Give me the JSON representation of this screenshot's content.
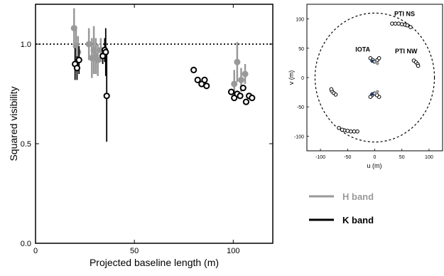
{
  "colors": {
    "h_band": "#999999",
    "k_band": "#000000",
    "accent_point": "#1f3a6e"
  },
  "chart_data": [
    {
      "type": "scatter",
      "xlabel": "Projected baseline length (m)",
      "ylabel": "Squared visibility",
      "xlim": [
        0,
        120
      ],
      "ylim": [
        0.0,
        1.2
      ],
      "x_ticks": [
        "0",
        "50",
        "100"
      ],
      "y_ticks": [
        "0.0",
        "0.5",
        "1.0"
      ],
      "reference_line": 1.0,
      "grid": false,
      "series": [
        {
          "name": "H band",
          "color": "#999999",
          "marker": "filled-circle",
          "points": [
            {
              "x": 19.5,
              "y": 1.08,
              "err": 0.1
            },
            {
              "x": 20.5,
              "y": 0.99,
              "err": 0.1
            },
            {
              "x": 21.5,
              "y": 0.96,
              "err": 0.08
            },
            {
              "x": 27.0,
              "y": 1.0,
              "err": 0.08
            },
            {
              "x": 28.5,
              "y": 0.93,
              "err": 0.1
            },
            {
              "x": 29.5,
              "y": 0.97,
              "err": 0.12
            },
            {
              "x": 30.5,
              "y": 0.94,
              "err": 0.09
            },
            {
              "x": 31.5,
              "y": 0.92,
              "err": 0.08
            },
            {
              "x": 33.0,
              "y": 0.97,
              "err": 0.06
            },
            {
              "x": 100.5,
              "y": 0.8,
              "err": 0.07
            },
            {
              "x": 102.0,
              "y": 0.91,
              "err": 0.1
            },
            {
              "x": 104.0,
              "y": 0.82,
              "err": 0.06
            },
            {
              "x": 106.0,
              "y": 0.85,
              "err": 0.05
            }
          ]
        },
        {
          "name": "K band",
          "color": "#000000",
          "marker": "open-circle",
          "points": [
            {
              "x": 20.0,
              "y": 0.9,
              "err": 0.08
            },
            {
              "x": 21.0,
              "y": 0.88,
              "err": 0.06
            },
            {
              "x": 22.0,
              "y": 0.92,
              "err": 0.07
            },
            {
              "x": 34.0,
              "y": 0.94,
              "err": 0.04
            },
            {
              "x": 35.0,
              "y": 0.97,
              "err": 0.06
            },
            {
              "x": 35.5,
              "y": 0.96,
              "err": 0.12
            },
            {
              "x": 36.0,
              "y": 0.74,
              "err": 0.23
            },
            {
              "x": 80.0,
              "y": 0.87,
              "err": 0.0
            },
            {
              "x": 82.0,
              "y": 0.82,
              "err": 0.0
            },
            {
              "x": 84.0,
              "y": 0.8,
              "err": 0.0
            },
            {
              "x": 85.5,
              "y": 0.82,
              "err": 0.0
            },
            {
              "x": 86.5,
              "y": 0.79,
              "err": 0.0
            },
            {
              "x": 99.0,
              "y": 0.76,
              "err": 0.0
            },
            {
              "x": 100.5,
              "y": 0.73,
              "err": 0.0
            },
            {
              "x": 102.0,
              "y": 0.75,
              "err": 0.0
            },
            {
              "x": 103.5,
              "y": 0.74,
              "err": 0.0
            },
            {
              "x": 105.0,
              "y": 0.78,
              "err": 0.0
            },
            {
              "x": 106.5,
              "y": 0.71,
              "err": 0.0
            },
            {
              "x": 108.0,
              "y": 0.74,
              "err": 0.0
            },
            {
              "x": 109.5,
              "y": 0.73,
              "err": 0.0
            }
          ]
        }
      ]
    },
    {
      "type": "scatter",
      "xlabel": "u (m)",
      "ylabel": "v (m)",
      "xlim": [
        -125,
        125
      ],
      "ylim": [
        -125,
        125
      ],
      "x_ticks": [
        "-100",
        "-50",
        "0",
        "50",
        "100"
      ],
      "y_ticks": [
        "-100",
        "-50",
        "0",
        "50",
        "100"
      ],
      "boundary_circle_radius": 110,
      "annotations": [
        {
          "text": "PTI NS",
          "x": 55,
          "y": 105
        },
        {
          "text": "IOTA",
          "x": -22,
          "y": 44
        },
        {
          "text": "PTI NW",
          "x": 58,
          "y": 41
        }
      ],
      "tracks": [
        {
          "name": "PTI NS",
          "x": [
            32,
            38,
            44,
            50,
            56,
            60,
            66
          ],
          "y": [
            92,
            92,
            92,
            91,
            90,
            89,
            86
          ]
        },
        {
          "name": "PTI NS mirror",
          "x": [
            -32,
            -38,
            -44,
            -50,
            -56,
            -60,
            -66
          ],
          "y": [
            -92,
            -92,
            -92,
            -91,
            -90,
            -89,
            -86
          ]
        },
        {
          "name": "PTI NW",
          "x": [
            72,
            76,
            79,
            80
          ],
          "y": [
            29,
            26,
            23,
            20
          ]
        },
        {
          "name": "PTI NW mirror",
          "x": [
            -72,
            -76,
            -79,
            -80
          ],
          "y": [
            -29,
            -26,
            -23,
            -20
          ]
        },
        {
          "name": "IOTA",
          "x": [
            -8,
            -4,
            0,
            5,
            8
          ],
          "y": [
            33,
            30,
            27,
            30,
            33
          ]
        },
        {
          "name": "IOTA mirror",
          "x": [
            8,
            4,
            0,
            -5,
            -8
          ],
          "y": [
            -33,
            -30,
            -27,
            -30,
            -33
          ]
        }
      ],
      "iota_filled": [
        {
          "x": -5,
          "y": 28
        },
        {
          "x": 2,
          "y": 26
        },
        {
          "x": 5,
          "y": 24
        },
        {
          "x": -5,
          "y": -28
        },
        {
          "x": 2,
          "y": -26
        },
        {
          "x": 5,
          "y": -24
        }
      ],
      "legend": {
        "placement": "bottom-right",
        "entries": [
          {
            "label": "H band",
            "color": "#999999"
          },
          {
            "label": "K band",
            "color": "#000000"
          }
        ]
      }
    }
  ]
}
